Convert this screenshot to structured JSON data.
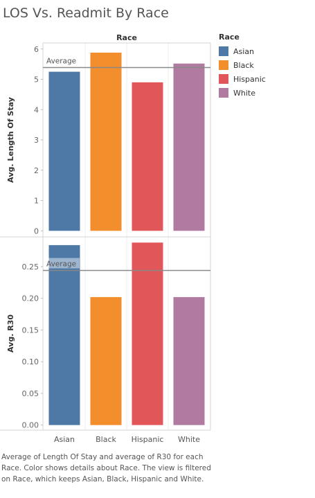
{
  "title": "LOS Vs. Readmit By Race",
  "column_header": "Race",
  "legend": {
    "title": "Race",
    "items": [
      {
        "label": "Asian",
        "color": "#4e79a7"
      },
      {
        "label": "Black",
        "color": "#f28e2b"
      },
      {
        "label": "Hispanic",
        "color": "#e15759"
      },
      {
        "label": "White",
        "color": "#b07aa1"
      }
    ]
  },
  "caption": "Average of Length Of Stay and average of R30 for each Race.  Color shows details about Race. The view is filtered on Race, which keeps Asian, Black, Hispanic and White.",
  "chart_data": [
    {
      "type": "bar",
      "categories": [
        "Asian",
        "Black",
        "Hispanic",
        "White"
      ],
      "values": [
        5.25,
        5.88,
        4.9,
        5.52
      ],
      "ylabel": "Avg. Length Of Stay",
      "yticks": [
        "0",
        "1",
        "2",
        "3",
        "4",
        "5",
        "6"
      ],
      "ylim": [
        -0.2,
        6.2
      ],
      "reference_line": {
        "label": "Average",
        "value": 5.39
      },
      "colors": [
        "#4e79a7",
        "#f28e2b",
        "#e15759",
        "#b07aa1"
      ]
    },
    {
      "type": "bar",
      "categories": [
        "Asian",
        "Black",
        "Hispanic",
        "White"
      ],
      "values": [
        0.284,
        0.202,
        0.288,
        0.202
      ],
      "ylabel": "Avg. R30",
      "yticks": [
        "0.00",
        "0.05",
        "0.10",
        "0.15",
        "0.20",
        "0.25"
      ],
      "ylim": [
        -0.008,
        0.297
      ],
      "reference_line": {
        "label": "Average",
        "value": 0.244
      },
      "colors": [
        "#4e79a7",
        "#f28e2b",
        "#e15759",
        "#b07aa1"
      ]
    }
  ]
}
